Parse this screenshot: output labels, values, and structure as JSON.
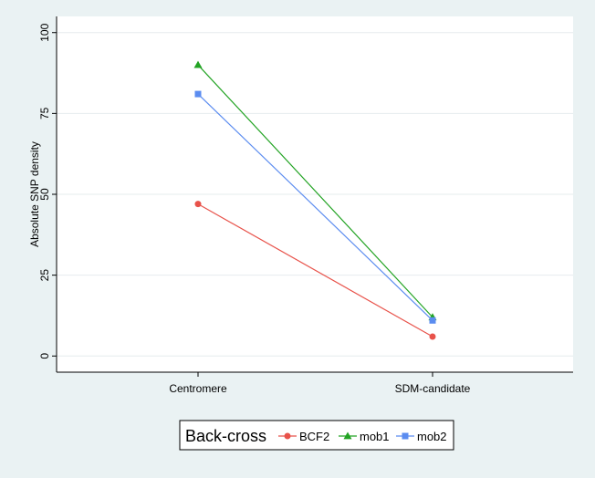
{
  "chart_data": {
    "type": "line",
    "categories": [
      "Centromere",
      "SDM-candidate"
    ],
    "ylabel": "Absolute SNP density",
    "xlabel": "",
    "ylim": [
      -5,
      105
    ],
    "yticks": [
      0,
      25,
      50,
      75,
      100
    ],
    "grid": true,
    "legend": {
      "title": "Back-cross",
      "placement": "bottom"
    },
    "series": [
      {
        "name": "BCF2",
        "values": [
          47,
          6
        ],
        "color": "#e8524a",
        "marker": "circle"
      },
      {
        "name": "mob1",
        "values": [
          90,
          12
        ],
        "color": "#22a323",
        "marker": "triangle"
      },
      {
        "name": "mob2",
        "values": [
          81,
          11
        ],
        "color": "#5b8cf0",
        "marker": "square"
      }
    ]
  }
}
